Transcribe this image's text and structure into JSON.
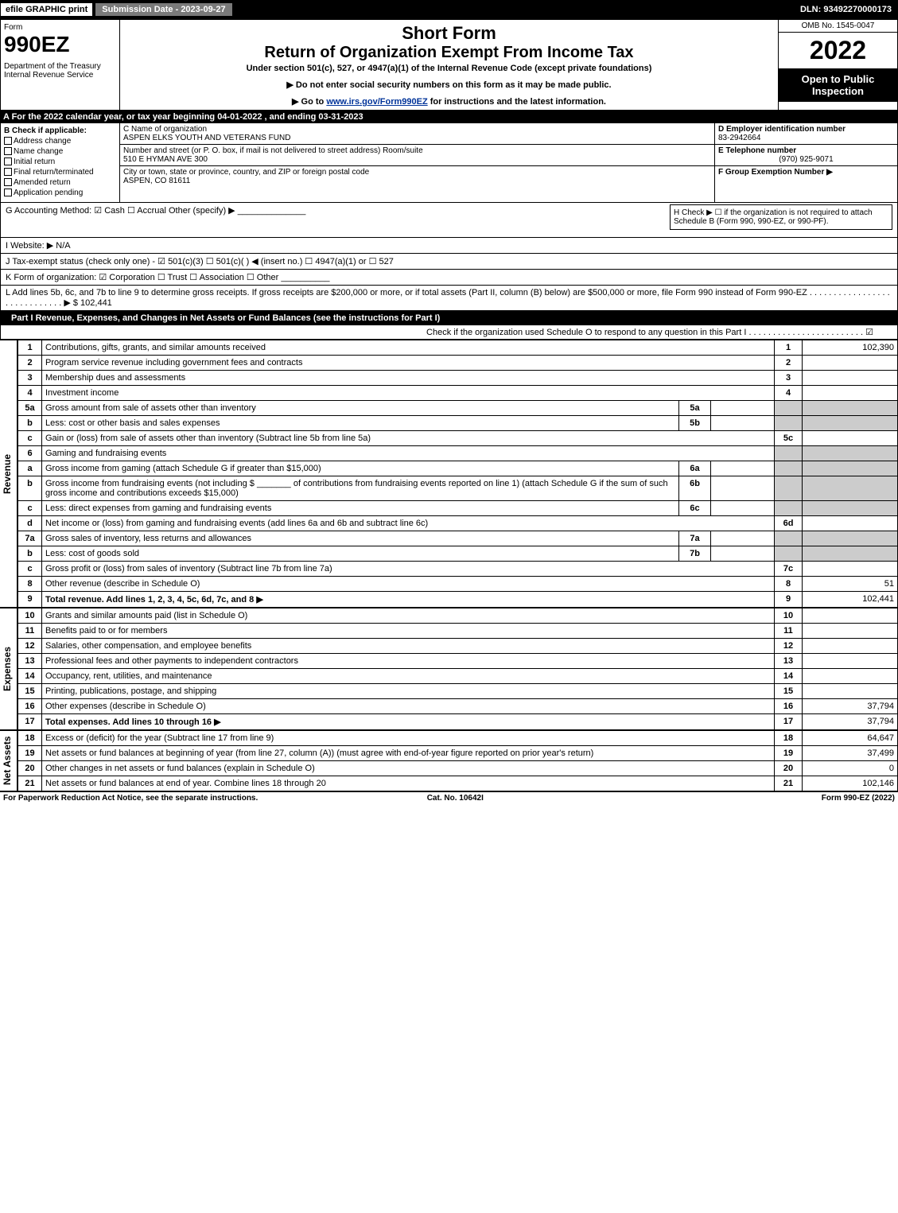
{
  "topbar": {
    "efile": "efile GRAPHIC print",
    "subdate": "Submission Date - 2023-09-27",
    "dln": "DLN: 93492270000173"
  },
  "header": {
    "form": "Form",
    "num": "990EZ",
    "dept": "Department of the Treasury\nInternal Revenue Service",
    "sf": "Short Form",
    "title": "Return of Organization Exempt From Income Tax",
    "sub": "Under section 501(c), 527, or 4947(a)(1) of the Internal Revenue Code (except private foundations)",
    "note1": "▶ Do not enter social security numbers on this form as it may be made public.",
    "note2": "▶ Go to www.irs.gov/Form990EZ for instructions and the latest information.",
    "omb": "OMB No. 1545-0047",
    "year": "2022",
    "open": "Open to Public Inspection"
  },
  "row_a": "A  For the 2022 calendar year, or tax year beginning 04-01-2022 , and ending 03-31-2023",
  "section_b": {
    "b_label": "B  Check if applicable:",
    "checks": [
      "Address change",
      "Name change",
      "Initial return",
      "Final return/terminated",
      "Amended return",
      "Application pending"
    ],
    "c_name_lbl": "C Name of organization",
    "c_name": "ASPEN ELKS YOUTH AND VETERANS FUND",
    "c_street_lbl": "Number and street (or P. O. box, if mail is not delivered to street address)       Room/suite",
    "c_street": "510 E HYMAN AVE 300",
    "c_city_lbl": "City or town, state or province, country, and ZIP or foreign postal code",
    "c_city": "ASPEN, CO  81611",
    "d_ein_lbl": "D Employer identification number",
    "d_ein": "83-2942664",
    "e_phone_lbl": "E Telephone number",
    "e_phone": "(970) 925-9071",
    "f_grp_lbl": "F Group Exemption Number  ▶",
    "f_grp": ""
  },
  "info": {
    "g": "G Accounting Method:   ☑ Cash  ☐ Accrual   Other (specify) ▶ ______________",
    "h": "H  Check ▶  ☐  if the organization is not required to attach Schedule B (Form 990, 990-EZ, or 990-PF).",
    "i": "I Website: ▶ N/A",
    "j": "J Tax-exempt status (check only one) -  ☑ 501(c)(3)  ☐ 501(c)(  ) ◀ (insert no.)  ☐ 4947(a)(1) or  ☐ 527",
    "k": "K Form of organization:   ☑ Corporation   ☐ Trust   ☐ Association   ☐ Other  __________",
    "l": "L Add lines 5b, 6c, and 7b to line 9 to determine gross receipts. If gross receipts are $200,000 or more, or if total assets (Part II, column (B) below) are $500,000 or more, file Form 990 instead of Form 990-EZ  . . . . . . . . . . . . . . . . . . . . . . . . . . . . . ▶ $ 102,441"
  },
  "part1_hdr": "Part I       Revenue, Expenses, and Changes in Net Assets or Fund Balances (see the instructions for Part I)",
  "part1_check": "Check if the organization used Schedule O to respond to any question in this Part I . . . . . . . . . . . . . . . . . . . . . . . . ☑",
  "revenue_label": "Revenue",
  "expenses_label": "Expenses",
  "netassets_label": "Net Assets",
  "lines_rev": [
    {
      "n": "1",
      "d": "Contributions, gifts, grants, and similar amounts received",
      "rn": "1",
      "v": "102,390"
    },
    {
      "n": "2",
      "d": "Program service revenue including government fees and contracts",
      "rn": "2",
      "v": ""
    },
    {
      "n": "3",
      "d": "Membership dues and assessments",
      "rn": "3",
      "v": ""
    },
    {
      "n": "4",
      "d": "Investment income",
      "rn": "4",
      "v": ""
    },
    {
      "n": "5a",
      "d": "Gross amount from sale of assets other than inventory",
      "mid": "5a",
      "midv": "",
      "shade": true
    },
    {
      "n": "b",
      "d": "Less: cost or other basis and sales expenses",
      "mid": "5b",
      "midv": "",
      "shade": true
    },
    {
      "n": "c",
      "d": "Gain or (loss) from sale of assets other than inventory (Subtract line 5b from line 5a)",
      "rn": "5c",
      "v": ""
    },
    {
      "n": "6",
      "d": "Gaming and fundraising events",
      "shade": true,
      "noval": true
    },
    {
      "n": "a",
      "d": "Gross income from gaming (attach Schedule G if greater than $15,000)",
      "mid": "6a",
      "midv": "",
      "shade": true
    },
    {
      "n": "b",
      "d": "Gross income from fundraising events (not including $ _______ of contributions from fundraising events reported on line 1) (attach Schedule G if the sum of such gross income and contributions exceeds $15,000)",
      "mid": "6b",
      "midv": "",
      "shade": true
    },
    {
      "n": "c",
      "d": "Less: direct expenses from gaming and fundraising events",
      "mid": "6c",
      "midv": "",
      "shade": true
    },
    {
      "n": "d",
      "d": "Net income or (loss) from gaming and fundraising events (add lines 6a and 6b and subtract line 6c)",
      "rn": "6d",
      "v": ""
    },
    {
      "n": "7a",
      "d": "Gross sales of inventory, less returns and allowances",
      "mid": "7a",
      "midv": "",
      "shade": true
    },
    {
      "n": "b",
      "d": "Less: cost of goods sold",
      "mid": "7b",
      "midv": "",
      "shade": true
    },
    {
      "n": "c",
      "d": "Gross profit or (loss) from sales of inventory (Subtract line 7b from line 7a)",
      "rn": "7c",
      "v": ""
    },
    {
      "n": "8",
      "d": "Other revenue (describe in Schedule O)",
      "rn": "8",
      "v": "51"
    },
    {
      "n": "9",
      "d": "Total revenue. Add lines 1, 2, 3, 4, 5c, 6d, 7c, and 8   ▶",
      "rn": "9",
      "v": "102,441",
      "bold": true
    }
  ],
  "lines_exp": [
    {
      "n": "10",
      "d": "Grants and similar amounts paid (list in Schedule O)",
      "rn": "10",
      "v": ""
    },
    {
      "n": "11",
      "d": "Benefits paid to or for members",
      "rn": "11",
      "v": ""
    },
    {
      "n": "12",
      "d": "Salaries, other compensation, and employee benefits",
      "rn": "12",
      "v": ""
    },
    {
      "n": "13",
      "d": "Professional fees and other payments to independent contractors",
      "rn": "13",
      "v": ""
    },
    {
      "n": "14",
      "d": "Occupancy, rent, utilities, and maintenance",
      "rn": "14",
      "v": ""
    },
    {
      "n": "15",
      "d": "Printing, publications, postage, and shipping",
      "rn": "15",
      "v": ""
    },
    {
      "n": "16",
      "d": "Other expenses (describe in Schedule O)",
      "rn": "16",
      "v": "37,794"
    },
    {
      "n": "17",
      "d": "Total expenses. Add lines 10 through 16   ▶",
      "rn": "17",
      "v": "37,794",
      "bold": true
    }
  ],
  "lines_net": [
    {
      "n": "18",
      "d": "Excess or (deficit) for the year (Subtract line 17 from line 9)",
      "rn": "18",
      "v": "64,647"
    },
    {
      "n": "19",
      "d": "Net assets or fund balances at beginning of year (from line 27, column (A)) (must agree with end-of-year figure reported on prior year's return)",
      "rn": "19",
      "v": "37,499"
    },
    {
      "n": "20",
      "d": "Other changes in net assets or fund balances (explain in Schedule O)",
      "rn": "20",
      "v": "0"
    },
    {
      "n": "21",
      "d": "Net assets or fund balances at end of year. Combine lines 18 through 20",
      "rn": "21",
      "v": "102,146"
    }
  ],
  "footer": {
    "left": "For Paperwork Reduction Act Notice, see the separate instructions.",
    "mid": "Cat. No. 10642I",
    "right": "Form 990-EZ (2022)"
  }
}
